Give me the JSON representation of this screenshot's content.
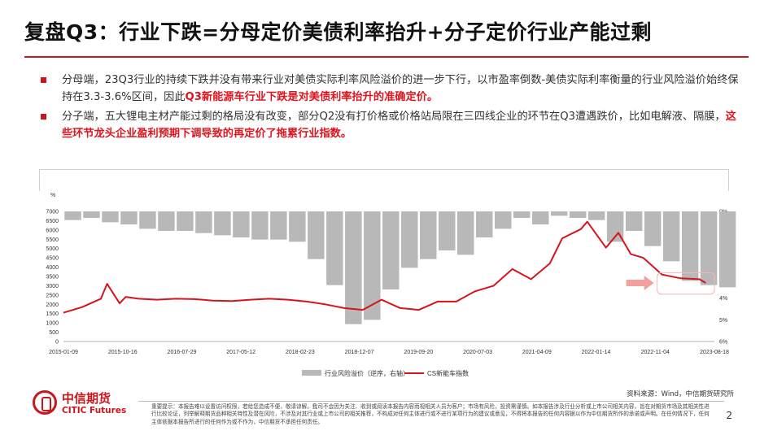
{
  "title": "复盘Q3：行业下跌=分母定价美债利率抬升+分子定价行业产能过剩",
  "bullets": [
    {
      "parts": [
        {
          "text": "分母端，23Q3行业的持续下跌并没有带来行业对美债实际利率风险溢价的进一步下行，以市盈率倒数-美债实际利率衡量的行业风险溢价始终保持在3.3-3.6%区间，因此",
          "emph": false
        },
        {
          "text": "Q3新能源车行业下跌是对美债利率抬升的准确定价。",
          "emph": true
        }
      ]
    },
    {
      "parts": [
        {
          "text": "分子端，五大锂电主材产能过剩的格局没有改变，部分Q2没有打价格或价格站局限在三四线企业的环节在Q3遭遇跌价，比如电解液、隔膜，",
          "emph": false
        },
        {
          "text": "这些环节龙头企业盈利预期下调导致的再定价了拖累行业指数。",
          "emph": true
        }
      ]
    }
  ],
  "chart_data": {
    "type": "bar+line",
    "unit_label": "%",
    "x_tick_labels": [
      "2015-01-09",
      "2015-10-16",
      "2016-07-29",
      "2017-05-12",
      "2018-02-23",
      "2018-12-07",
      "2019-09-20",
      "2020-07-03",
      "2021-04-09",
      "2022-01-14",
      "2022-11-04",
      "2023-08-18"
    ],
    "left_axis": {
      "min": 0,
      "max": 7000,
      "ticks": [
        0,
        500,
        1000,
        1500,
        2000,
        2500,
        3000,
        3500,
        4000,
        4500,
        5000,
        5500,
        6000,
        6500,
        7000
      ]
    },
    "right_axis": {
      "min": 0,
      "max": 6,
      "inverted": true,
      "ticks": [
        "0%",
        "1%",
        "2%",
        "3%",
        "4%",
        "5%",
        "6%"
      ]
    },
    "series": [
      {
        "name": "行业风险溢价（逆序，右轴）",
        "kind": "bar",
        "color": "#b8b8b8",
        "axis": "right",
        "x": [
          "2015-01",
          "2015-04",
          "2015-07",
          "2015-10",
          "2016-01",
          "2016-04",
          "2016-07",
          "2016-10",
          "2017-01",
          "2017-04",
          "2017-07",
          "2017-10",
          "2018-01",
          "2018-04",
          "2018-07",
          "2018-10",
          "2019-01",
          "2019-04",
          "2019-07",
          "2019-10",
          "2020-01",
          "2020-04",
          "2020-07",
          "2020-10",
          "2021-01",
          "2021-04",
          "2021-07",
          "2021-10",
          "2022-01",
          "2022-04",
          "2022-07",
          "2022-10",
          "2023-01",
          "2023-04",
          "2023-07",
          "2023-10"
        ],
        "values": [
          0.4,
          0.3,
          0.5,
          0.6,
          0.8,
          0.9,
          0.9,
          1.0,
          1.1,
          1.2,
          1.3,
          1.3,
          1.4,
          2.2,
          3.4,
          5.2,
          5.0,
          3.6,
          2.6,
          2.2,
          1.8,
          2.0,
          1.2,
          0.8,
          0.3,
          0.6,
          0.2,
          0.3,
          0.4,
          1.4,
          0.9,
          1.6,
          2.3,
          3.2,
          3.4,
          3.5
        ]
      },
      {
        "name": "CS新能车指数",
        "kind": "line",
        "color": "#d7141d",
        "axis": "left",
        "x": [
          "2015-01",
          "2015-04",
          "2015-07",
          "2015-08",
          "2015-10",
          "2015-11",
          "2016-01",
          "2016-04",
          "2016-07",
          "2016-10",
          "2017-01",
          "2017-04",
          "2017-07",
          "2017-10",
          "2018-01",
          "2018-04",
          "2018-07",
          "2018-10",
          "2019-01",
          "2019-04",
          "2019-07",
          "2019-10",
          "2020-01",
          "2020-04",
          "2020-07",
          "2020-10",
          "2021-01",
          "2021-04",
          "2021-07",
          "2021-09",
          "2021-12",
          "2022-01",
          "2022-04",
          "2022-06",
          "2022-08",
          "2022-10",
          "2023-01",
          "2023-04",
          "2023-07",
          "2023-08"
        ],
        "values": [
          1550,
          1850,
          2300,
          3100,
          2050,
          2400,
          2300,
          2250,
          2300,
          2280,
          2200,
          2180,
          2250,
          2300,
          2250,
          2150,
          2000,
          1800,
          1700,
          2250,
          1800,
          1700,
          2150,
          2150,
          2700,
          3000,
          3900,
          3350,
          4200,
          5550,
          6050,
          6450,
          5050,
          5850,
          4700,
          4500,
          3600,
          3400,
          3350,
          3150
        ]
      }
    ],
    "legend": [
      "行业风险溢价（逆序，右轴）",
      "CS新能车指数"
    ],
    "legend_position": "bottom-center",
    "callout_arrow_color": "#f2a0a0",
    "highlight_box_color": "#f2b8b8"
  },
  "source": "资料来源：Wind，中信期货研究所",
  "logo": {
    "cn": "中信期货",
    "en": "CITIC Futures",
    "color": "#c8161d"
  },
  "disclaimer": "重要提示：本报告难以设置访问权限，若给您造成不便，敬请谅解。我司不会因为关注、收到或阅读本报告内容而视相关人员为客户；市场有风险，投资需谨慎。如本报告涉及行业分析或上市公司相关内容，旨在对期货市场及其相关性进行比较论证，列举解释期货品种相关特性及潜在风险，不涉及对其行业或上市公司的相关推荐，不构成对任何主体进行或不进行某项行为的建议或意见，不得将本报告的任何内容据以作为中信期货所作的承诺或声明。在任何情况下，任何主体依据本报告所进行的任何作为或不作为，中信期货不承担任何责任。",
  "page_number": "2"
}
